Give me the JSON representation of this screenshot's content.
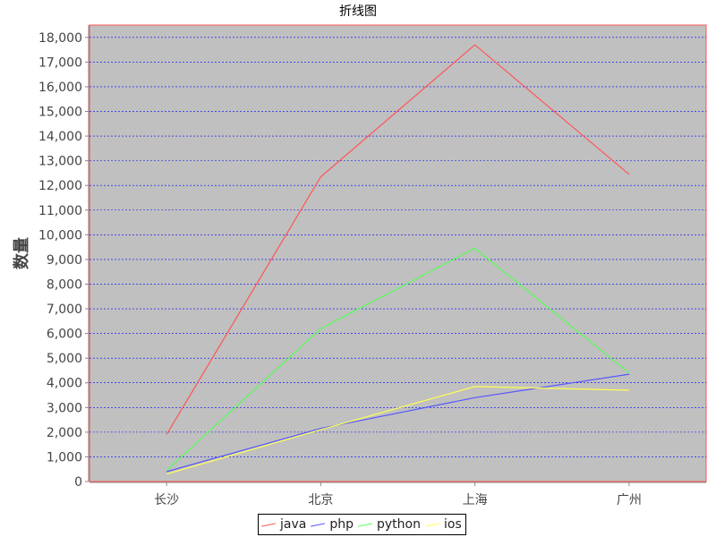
{
  "chart_data": {
    "type": "line",
    "title": "折线图",
    "xlabel": "",
    "ylabel": "数量",
    "categories": [
      "长沙",
      "北京",
      "上海",
      "广州"
    ],
    "ylim": [
      0,
      18500
    ],
    "yticks": [
      0,
      1000,
      2000,
      3000,
      4000,
      5000,
      6000,
      7000,
      8000,
      9000,
      10000,
      11000,
      12000,
      13000,
      14000,
      15000,
      16000,
      17000,
      18000
    ],
    "ytick_labels": [
      "0",
      "1,000",
      "2,000",
      "3,000",
      "4,000",
      "5,000",
      "6,000",
      "7,000",
      "8,000",
      "9,000",
      "10,000",
      "11,000",
      "12,000",
      "13,000",
      "14,000",
      "15,000",
      "16,000",
      "17,000",
      "18,000"
    ],
    "grid": true,
    "legend_position": "bottom",
    "series": [
      {
        "name": "java",
        "color": "#ff5555",
        "values": [
          1900,
          12350,
          17700,
          12450
        ]
      },
      {
        "name": "php",
        "color": "#5555ff",
        "values": [
          400,
          2150,
          3400,
          4350
        ]
      },
      {
        "name": "python",
        "color": "#55ff55",
        "values": [
          450,
          6200,
          9450,
          4400
        ]
      },
      {
        "name": "ios",
        "color": "#ffff55",
        "values": [
          300,
          2100,
          3850,
          3700
        ]
      }
    ]
  },
  "colors": {
    "plot_background": "#c0c0c0",
    "plot_border": "#ff5555",
    "gridline": "#0000ff",
    "axis": "#888888"
  }
}
